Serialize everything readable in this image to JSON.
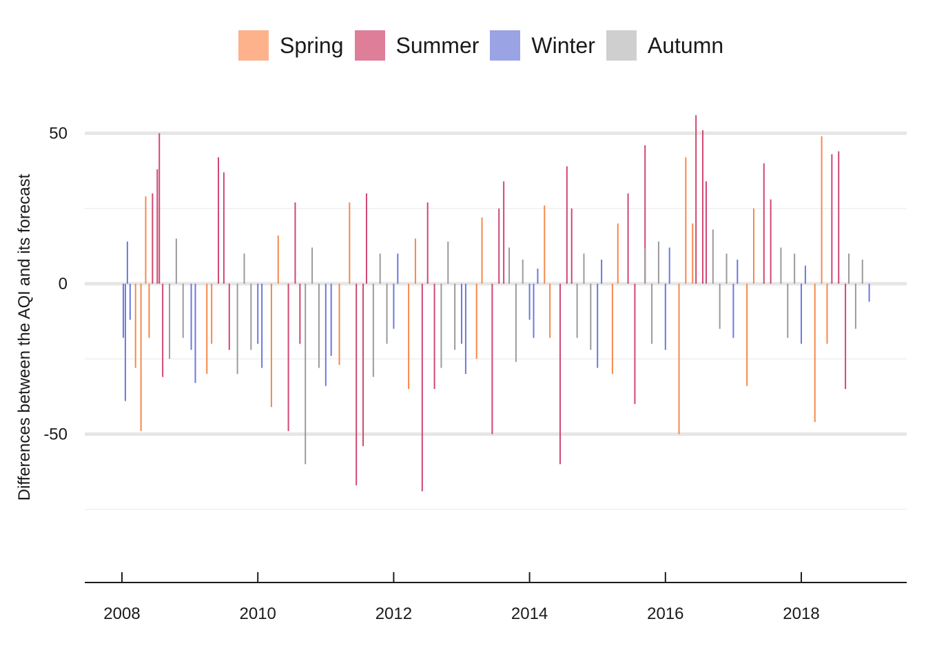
{
  "chart_data": {
    "type": "bar",
    "ylabel": "Differences between the AQI and its forecast",
    "xlabel": "",
    "ylim": [
      -92,
      57
    ],
    "xlim": [
      2007.45,
      2019.55
    ],
    "y_ticks": [
      50,
      0,
      -50
    ],
    "y_tick_labels": [
      "50",
      "0",
      "-50"
    ],
    "x_ticks": [
      2008,
      2010,
      2012,
      2014,
      2016,
      2018
    ],
    "x_tick_labels": [
      "2008",
      "2010",
      "2012",
      "2014",
      "2016",
      "2018"
    ],
    "grid": true,
    "legend": {
      "position": "top",
      "entries": [
        {
          "name": "Spring",
          "color": "#fdb28c"
        },
        {
          "name": "Summer",
          "color": "#de7e99"
        },
        {
          "name": "Winter",
          "color": "#9aa3e3"
        },
        {
          "name": "Autumn",
          "color": "#cfcfcf"
        }
      ]
    },
    "series_colors": {
      "Spring": "#f5884a",
      "Summer": "#d14670",
      "Winter": "#6b78de",
      "Autumn": "#9a9a9a"
    },
    "series": [
      {
        "name": "Winter",
        "x": [
          2008.02,
          2008.05,
          2008.08,
          2008.12,
          2009.02,
          2009.08,
          2010.0,
          2010.06,
          2011.0,
          2011.08,
          2012.0,
          2012.06,
          2013.0,
          2013.06,
          2014.0,
          2014.06,
          2014.12,
          2015.0,
          2015.06,
          2016.0,
          2016.06,
          2017.0,
          2017.06,
          2018.0,
          2018.06,
          2019.0
        ],
        "values": [
          -18,
          -39,
          14,
          -12,
          -22,
          -33,
          -20,
          -28,
          -34,
          -24,
          -15,
          10,
          -20,
          -30,
          -12,
          -18,
          5,
          -28,
          8,
          -22,
          12,
          -18,
          8,
          -20,
          6,
          -6
        ]
      },
      {
        "name": "Spring",
        "x": [
          2008.2,
          2008.28,
          2008.35,
          2008.4,
          2009.25,
          2009.32,
          2010.2,
          2010.3,
          2011.2,
          2011.35,
          2012.22,
          2012.32,
          2013.22,
          2013.3,
          2014.22,
          2014.3,
          2015.22,
          2015.3,
          2016.2,
          2016.3,
          2016.4,
          2017.2,
          2017.3,
          2018.2,
          2018.3,
          2018.38
        ],
        "values": [
          -28,
          -49,
          29,
          -18,
          -30,
          -20,
          -41,
          16,
          -27,
          27,
          -35,
          15,
          -25,
          22,
          26,
          -18,
          -30,
          20,
          -50,
          42,
          20,
          -34,
          25,
          -46,
          49,
          -20
        ]
      },
      {
        "name": "Summer",
        "x": [
          2008.45,
          2008.52,
          2008.55,
          2008.6,
          2009.42,
          2009.5,
          2009.58,
          2010.45,
          2010.55,
          2010.62,
          2011.45,
          2011.55,
          2011.6,
          2012.42,
          2012.5,
          2012.6,
          2013.45,
          2013.55,
          2013.62,
          2014.45,
          2014.55,
          2014.62,
          2015.45,
          2015.55,
          2015.7,
          2016.45,
          2016.55,
          2016.6,
          2017.45,
          2017.55,
          2018.45,
          2018.55,
          2018.65
        ],
        "values": [
          30,
          38,
          50,
          -31,
          42,
          37,
          -22,
          -49,
          27,
          -20,
          -67,
          -54,
          30,
          -69,
          27,
          -35,
          -50,
          25,
          34,
          -60,
          39,
          25,
          30,
          -40,
          46,
          56,
          51,
          34,
          40,
          28,
          43,
          44,
          -35
        ]
      },
      {
        "name": "Autumn",
        "x": [
          2008.7,
          2008.8,
          2008.9,
          2009.7,
          2009.8,
          2009.9,
          2010.7,
          2010.8,
          2010.9,
          2011.7,
          2011.8,
          2011.9,
          2012.7,
          2012.8,
          2012.9,
          2013.7,
          2013.8,
          2013.9,
          2014.7,
          2014.8,
          2014.9,
          2015.7,
          2015.8,
          2015.9,
          2016.7,
          2016.8,
          2016.9,
          2017.7,
          2017.8,
          2017.9,
          2018.7,
          2018.8,
          2018.9
        ],
        "values": [
          -25,
          15,
          -18,
          -30,
          10,
          -22,
          -60,
          12,
          -28,
          -31,
          10,
          -20,
          -28,
          14,
          -22,
          12,
          -26,
          8,
          -18,
          10,
          -22,
          12,
          -20,
          14,
          18,
          -15,
          10,
          12,
          -18,
          10,
          10,
          -15,
          8
        ]
      }
    ]
  }
}
